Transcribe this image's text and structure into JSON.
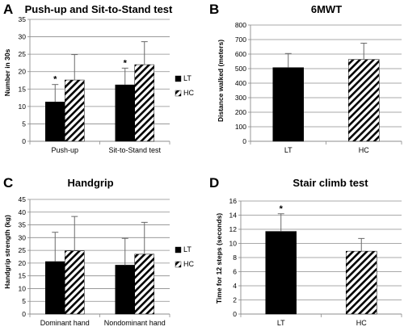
{
  "chart_data": [
    {
      "panel": "A",
      "type": "bar",
      "title": "Push-up and Sit-to-Stand test",
      "ylabel": "Number in 30s",
      "xlabel": "",
      "ylim": [
        0,
        35
      ],
      "yticks": [
        "0",
        "5",
        "10",
        "15",
        "20",
        "25",
        "30",
        "35"
      ],
      "categories": [
        "Push-up",
        "Sit-to-Stand test"
      ],
      "series": [
        {
          "name": "LT",
          "fill": "solid",
          "values": [
            11.3,
            16.2
          ],
          "errors": [
            5.0,
            4.8
          ]
        },
        {
          "name": "HC",
          "fill": "hatch",
          "values": [
            17.6,
            22.0
          ],
          "errors": [
            7.3,
            6.6
          ]
        }
      ],
      "annotations": [
        {
          "text": "*",
          "category": 0,
          "series": 0
        },
        {
          "text": "*",
          "category": 1,
          "series": 0
        }
      ],
      "legend": "right",
      "grid": true
    },
    {
      "panel": "B",
      "type": "bar",
      "title": "6MWT",
      "ylabel": "Distance walked (meters)",
      "xlabel": "",
      "ylim": [
        0,
        800
      ],
      "yticks": [
        "0",
        "100",
        "200",
        "300",
        "400",
        "500",
        "600",
        "700",
        "800"
      ],
      "categories": [
        "LT",
        "HC"
      ],
      "series": [
        {
          "name": "",
          "fills": [
            "solid",
            "hatch"
          ],
          "values": [
            507,
            563
          ],
          "errors": [
            97,
            112
          ]
        }
      ],
      "annotations": [],
      "legend": "none",
      "grid": true
    },
    {
      "panel": "C",
      "type": "bar",
      "title": "Handgrip",
      "ylabel": "Handgrip strength (kg)",
      "xlabel": "",
      "ylim": [
        0,
        45
      ],
      "yticks": [
        "0",
        "5",
        "10",
        "15",
        "20",
        "25",
        "30",
        "35",
        "40",
        "45"
      ],
      "categories": [
        "Dominant hand",
        "Nondominant hand"
      ],
      "series": [
        {
          "name": "LT",
          "fill": "solid",
          "values": [
            20.6,
            19.2
          ],
          "errors": [
            11.5,
            10.5
          ]
        },
        {
          "name": "HC",
          "fill": "hatch",
          "values": [
            24.8,
            23.5
          ],
          "errors": [
            13.5,
            12.5
          ]
        }
      ],
      "annotations": [],
      "legend": "right",
      "grid": true
    },
    {
      "panel": "D",
      "type": "bar",
      "title": "Stair climb test",
      "ylabel": "Time for 12 steps (seconds)",
      "xlabel": "",
      "ylim": [
        0,
        16
      ],
      "yticks": [
        "0",
        "2",
        "4",
        "6",
        "8",
        "10",
        "12",
        "14",
        "16"
      ],
      "categories": [
        "LT",
        "HC"
      ],
      "series": [
        {
          "name": "",
          "fills": [
            "solid",
            "hatch"
          ],
          "values": [
            11.7,
            8.9
          ],
          "errors": [
            2.5,
            1.8
          ]
        }
      ],
      "annotations": [
        {
          "text": "*",
          "category": 0,
          "series": 0
        }
      ],
      "legend": "none",
      "grid": true
    }
  ],
  "colors": {
    "bar": "#000000",
    "grid": "#8c8c8c",
    "axis": "#8c8c8c",
    "hatch_bg": "#ffffff"
  }
}
